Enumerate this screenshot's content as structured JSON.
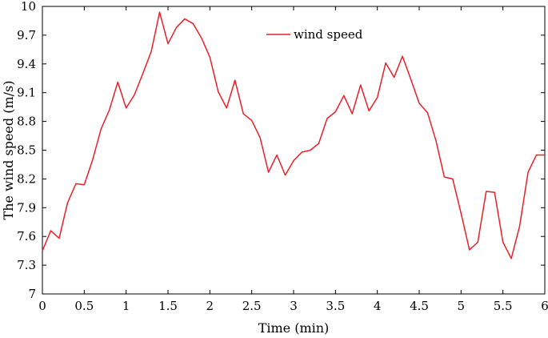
{
  "chart_data": {
    "type": "line",
    "title": "",
    "xlabel": "Time (min)",
    "ylabel": "The wind speed (m/s)",
    "xlim": [
      0,
      6
    ],
    "ylim": [
      7,
      10
    ],
    "xticks": [
      0,
      0.5,
      1,
      1.5,
      2,
      2.5,
      3,
      3.5,
      4,
      4.5,
      5,
      5.5,
      6
    ],
    "xtick_labels": [
      "0",
      "0.5",
      "1",
      "1.5",
      "2",
      "2.5",
      "3",
      "3.5",
      "4",
      "4.5",
      "5",
      "5.5",
      "6"
    ],
    "yticks": [
      7,
      7.3,
      7.6,
      7.9,
      8.2,
      8.5,
      8.8,
      9.1,
      9.4,
      9.7,
      10
    ],
    "ytick_labels": [
      "7",
      "7.3",
      "7.6",
      "7.9",
      "8.2",
      "8.5",
      "8.8",
      "9.1",
      "9.4",
      "9.7",
      "10"
    ],
    "grid": false,
    "legend_position": "top-center",
    "series": [
      {
        "name": "wind speed",
        "color": "#e8202a",
        "x": [
          0,
          0.1,
          0.2,
          0.3,
          0.4,
          0.5,
          0.6,
          0.7,
          0.8,
          0.9,
          1.0,
          1.1,
          1.2,
          1.3,
          1.4,
          1.5,
          1.6,
          1.7,
          1.8,
          1.9,
          2.0,
          2.1,
          2.2,
          2.3,
          2.4,
          2.5,
          2.6,
          2.7,
          2.8,
          2.9,
          3.0,
          3.1,
          3.2,
          3.3,
          3.4,
          3.5,
          3.6,
          3.7,
          3.8,
          3.9,
          4.0,
          4.1,
          4.2,
          4.3,
          4.4,
          4.5,
          4.6,
          4.7,
          4.8,
          4.9,
          5.0,
          5.1,
          5.2,
          5.3,
          5.4,
          5.5,
          5.6,
          5.7,
          5.8,
          5.9,
          6.0
        ],
        "y": [
          7.45,
          7.66,
          7.58,
          7.95,
          8.15,
          8.14,
          8.4,
          8.72,
          8.92,
          9.21,
          8.94,
          9.08,
          9.3,
          9.53,
          9.94,
          9.61,
          9.78,
          9.87,
          9.82,
          9.67,
          9.47,
          9.11,
          8.94,
          9.23,
          8.88,
          8.81,
          8.63,
          8.27,
          8.45,
          8.24,
          8.39,
          8.48,
          8.5,
          8.57,
          8.83,
          8.9,
          9.07,
          8.88,
          9.18,
          8.91,
          9.05,
          9.41,
          9.26,
          9.48,
          9.24,
          8.99,
          8.89,
          8.6,
          8.22,
          8.2,
          7.84,
          7.46,
          7.54,
          8.07,
          8.06,
          7.54,
          7.37,
          7.71,
          8.27,
          8.45,
          8.45
        ]
      }
    ]
  }
}
